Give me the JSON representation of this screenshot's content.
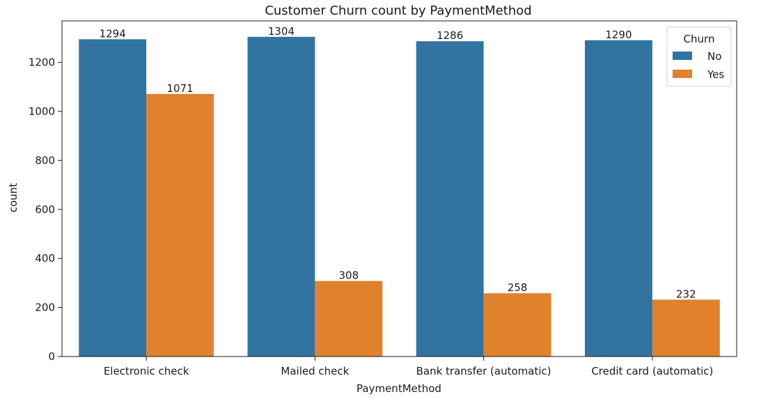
{
  "chart_data": {
    "type": "bar",
    "title": "Customer Churn count by PaymentMethod",
    "xlabel": "PaymentMethod",
    "ylabel": "count",
    "categories": [
      "Electronic check",
      "Mailed check",
      "Bank transfer (automatic)",
      "Credit card (automatic)"
    ],
    "series": [
      {
        "name": "No",
        "values": [
          1294,
          1304,
          1286,
          1290
        ],
        "color": "#3274a1"
      },
      {
        "name": "Yes",
        "values": [
          1071,
          308,
          258,
          232
        ],
        "color": "#e1812c"
      }
    ],
    "ylim": [
      0,
      1369
    ],
    "yticks": [
      0,
      200,
      400,
      600,
      800,
      1000,
      1200
    ],
    "grid": false,
    "legend": {
      "title": "Churn",
      "placement": "top-right"
    }
  }
}
